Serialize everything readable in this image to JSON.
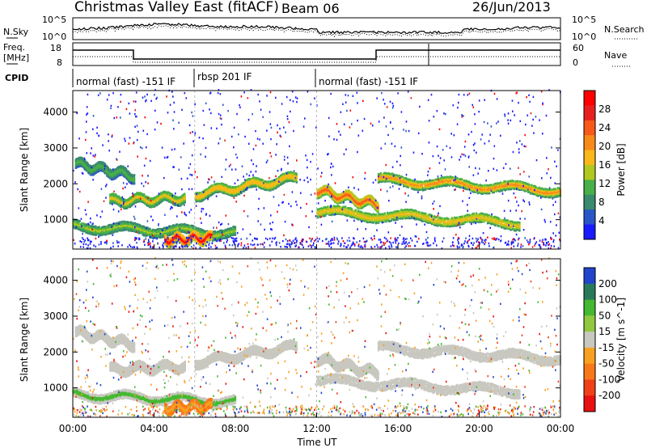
{
  "header": {
    "station": "Christmas Valley East (fitACF)",
    "beam": "Beam 06",
    "date": "26/Jun/2013"
  },
  "top_panel": {
    "left_label": "N.Sky",
    "right_label": "N.Search",
    "left_ticks": [
      "10^5",
      "10^0"
    ],
    "right_ticks": [
      "10^5",
      "10^0"
    ]
  },
  "freq_panel": {
    "left_label_1": "Freq.",
    "left_label_2": "[MHz]",
    "right_label": "Nave",
    "left_ticks": [
      "18",
      "8"
    ],
    "right_ticks": [
      "60",
      "0"
    ]
  },
  "cpid": {
    "label": "CPID",
    "segments": [
      {
        "label": "normal (fast) -151 IF",
        "start_hour": 0.0,
        "end_hour": 6.0
      },
      {
        "label": "rbsp 201 IF",
        "start_hour": 6.0,
        "end_hour": 12.0
      },
      {
        "label": "normal (fast) -151 IF",
        "start_hour": 12.0,
        "end_hour": 24.0
      }
    ]
  },
  "chart_data": [
    {
      "type": "heatmap",
      "title": "",
      "xlabel": "",
      "ylabel": "Slant Range [km]",
      "xlim": [
        0,
        24
      ],
      "ylim": [
        180,
        4600
      ],
      "yticks": [
        1000,
        2000,
        3000,
        4000
      ],
      "colorbar": {
        "label": "Power [dB]",
        "ticks": [
          "4",
          "8",
          "12",
          "16",
          "20",
          "24",
          "28"
        ],
        "colors": [
          "#1a1aff",
          "#2a55c8",
          "#3a8a6e",
          "#48b048",
          "#b0c820",
          "#f8b81a",
          "#f88a1a",
          "#f85818",
          "#e81f1f",
          "#ff0000"
        ]
      },
      "bands": [
        {
          "x": [
            0.1,
            3.0
          ],
          "y": [
            2550,
            2200
          ],
          "intensity": 10
        },
        {
          "x": [
            1.8,
            5.5
          ],
          "y": [
            1500,
            1600
          ],
          "intensity": 14
        },
        {
          "x": [
            0.0,
            8.0
          ],
          "y": [
            800,
            600
          ],
          "intensity": 12
        },
        {
          "x": [
            4.5,
            6.8
          ],
          "y": [
            430,
            480
          ],
          "intensity": 26
        },
        {
          "x": [
            6.0,
            11.0
          ],
          "y": [
            1700,
            2150
          ],
          "intensity": 16
        },
        {
          "x": [
            12.0,
            15.0
          ],
          "y": [
            1800,
            1400
          ],
          "intensity": 20
        },
        {
          "x": [
            12.0,
            22.0
          ],
          "y": [
            1200,
            900
          ],
          "intensity": 15
        },
        {
          "x": [
            15.0,
            24.0
          ],
          "y": [
            2100,
            1800
          ],
          "intensity": 18
        }
      ]
    },
    {
      "type": "heatmap",
      "title": "",
      "xlabel": "Time UT",
      "ylabel": "Slant Range [km]",
      "xlim": [
        0,
        24
      ],
      "ylim": [
        180,
        4600
      ],
      "yticks": [
        1000,
        2000,
        3000,
        4000
      ],
      "xticks": [
        "00:00",
        "04:00",
        "08:00",
        "12:00",
        "16:00",
        "20:00",
        "00:00"
      ],
      "colorbar": {
        "label": "Velocity [m s^-1]",
        "ticks": [
          "200",
          "100",
          "50",
          "15",
          "-15",
          "-50",
          "-100",
          "-200"
        ],
        "colors": [
          "#2244cc",
          "#2a7a5a",
          "#44b830",
          "#90c840",
          "#c8c8c0",
          "#f8a020",
          "#f87818",
          "#f04018",
          "#e81010"
        ]
      },
      "bands": [
        {
          "x": [
            0.1,
            3.0
          ],
          "y": [
            2550,
            2200
          ],
          "velocity": 0
        },
        {
          "x": [
            1.8,
            5.5
          ],
          "y": [
            1500,
            1600
          ],
          "velocity": 0
        },
        {
          "x": [
            0.0,
            8.0
          ],
          "y": [
            800,
            600
          ],
          "velocity": 20
        },
        {
          "x": [
            4.5,
            6.8
          ],
          "y": [
            430,
            480
          ],
          "velocity": -60
        },
        {
          "x": [
            6.0,
            11.0
          ],
          "y": [
            1700,
            2150
          ],
          "velocity": 5
        },
        {
          "x": [
            12.0,
            15.0
          ],
          "y": [
            1800,
            1400
          ],
          "velocity": 0
        },
        {
          "x": [
            12.0,
            22.0
          ],
          "y": [
            1200,
            900
          ],
          "velocity": 0
        },
        {
          "x": [
            15.0,
            24.0
          ],
          "y": [
            2100,
            1800
          ],
          "velocity": 0
        }
      ]
    }
  ]
}
